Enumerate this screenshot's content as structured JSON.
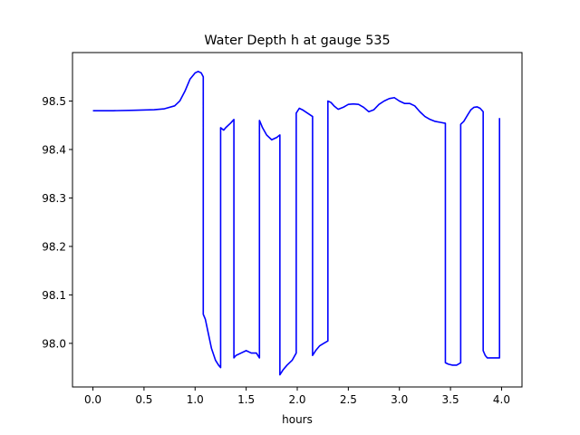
{
  "chart_data": {
    "type": "line",
    "title": "Water Depth h at gauge 535",
    "xlabel": "hours",
    "ylabel": "",
    "xlim": [
      -0.2,
      4.2
    ],
    "ylim": [
      97.91,
      98.6
    ],
    "xticks": [
      0.0,
      0.5,
      1.0,
      1.5,
      2.0,
      2.5,
      3.0,
      3.5,
      4.0
    ],
    "xtick_labels": [
      "0.0",
      "0.5",
      "1.0",
      "1.5",
      "2.0",
      "2.5",
      "3.0",
      "3.5",
      "4.0"
    ],
    "yticks": [
      98.0,
      98.1,
      98.2,
      98.3,
      98.4,
      98.5
    ],
    "ytick_labels": [
      "98.0",
      "98.1",
      "98.2",
      "98.3",
      "98.4",
      "98.5"
    ],
    "grid": false,
    "series": [
      {
        "color": "#0000ff",
        "x": [
          0.0,
          0.2,
          0.4,
          0.6,
          0.7,
          0.8,
          0.85,
          0.9,
          0.95,
          1.0,
          1.03,
          1.06,
          1.08,
          1.08,
          1.1,
          1.13,
          1.16,
          1.2,
          1.23,
          1.25,
          1.25,
          1.28,
          1.3,
          1.35,
          1.38,
          1.38,
          1.4,
          1.45,
          1.5,
          1.55,
          1.6,
          1.63,
          1.63,
          1.66,
          1.7,
          1.75,
          1.8,
          1.83,
          1.83,
          1.86,
          1.9,
          1.95,
          1.99,
          1.99,
          2.02,
          2.05,
          2.1,
          2.15,
          2.15,
          2.18,
          2.22,
          2.26,
          2.3,
          2.3,
          2.33,
          2.36,
          2.4,
          2.45,
          2.5,
          2.55,
          2.6,
          2.65,
          2.7,
          2.75,
          2.8,
          2.85,
          2.9,
          2.95,
          3.0,
          3.05,
          3.1,
          3.15,
          3.2,
          3.25,
          3.3,
          3.35,
          3.4,
          3.45,
          3.45,
          3.48,
          3.52,
          3.56,
          3.6,
          3.6,
          3.63,
          3.67,
          3.7,
          3.73,
          3.76,
          3.79,
          3.82,
          3.82,
          3.84,
          3.86,
          3.9,
          3.95,
          3.98,
          3.98
        ],
        "y": [
          98.48,
          98.48,
          98.481,
          98.482,
          98.484,
          98.49,
          98.5,
          98.52,
          98.545,
          98.558,
          98.561,
          98.558,
          98.55,
          98.06,
          98.05,
          98.02,
          97.99,
          97.965,
          97.955,
          97.95,
          98.445,
          98.44,
          98.445,
          98.455,
          98.462,
          97.97,
          97.975,
          97.98,
          97.985,
          97.98,
          97.98,
          97.97,
          98.46,
          98.445,
          98.43,
          98.42,
          98.425,
          98.43,
          97.935,
          97.945,
          97.955,
          97.965,
          97.98,
          98.475,
          98.485,
          98.482,
          98.475,
          98.468,
          97.975,
          97.985,
          97.995,
          98.0,
          98.005,
          98.5,
          98.497,
          98.49,
          98.483,
          98.487,
          98.493,
          98.494,
          98.493,
          98.487,
          98.478,
          98.482,
          98.493,
          98.5,
          98.505,
          98.507,
          98.5,
          98.495,
          98.495,
          98.49,
          98.478,
          98.468,
          98.462,
          98.458,
          98.456,
          98.454,
          97.96,
          97.957,
          97.955,
          97.955,
          97.96,
          98.452,
          98.458,
          98.472,
          98.482,
          98.487,
          98.488,
          98.485,
          98.478,
          97.985,
          97.975,
          97.97,
          97.97,
          97.97,
          97.97,
          98.465
        ]
      }
    ]
  }
}
